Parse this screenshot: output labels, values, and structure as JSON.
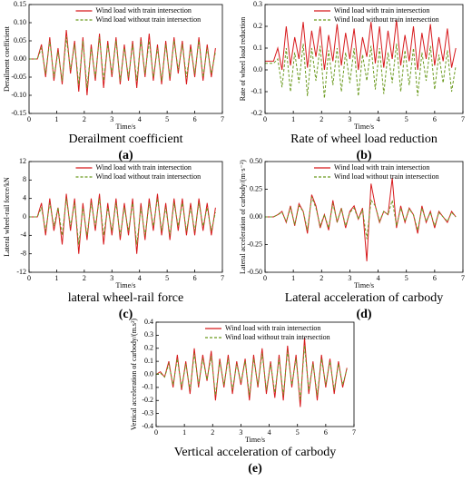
{
  "chart_data": [
    {
      "type": "line",
      "ylabel": "Derailment coefficient",
      "xlabel": "Time/s",
      "caption": "Derailment coefficient",
      "label": "(a)",
      "legend": "upper center",
      "x": [
        0,
        0.15,
        0.3,
        0.45,
        0.6,
        0.75,
        0.9,
        1.05,
        1.2,
        1.35,
        1.5,
        1.65,
        1.8,
        1.95,
        2.1,
        2.25,
        2.4,
        2.55,
        2.7,
        2.85,
        3,
        3.15,
        3.3,
        3.45,
        3.6,
        3.75,
        3.9,
        4.05,
        4.2,
        4.35,
        4.5,
        4.65,
        4.8,
        4.95,
        5.1,
        5.25,
        5.4,
        5.55,
        5.7,
        5.85,
        6,
        6.15,
        6.3,
        6.45,
        6.6,
        6.75
      ],
      "series": [
        {
          "name": "Wind load with train intersection",
          "color": "#d7191c",
          "dash": "solid",
          "values": [
            0,
            0,
            0,
            0.04,
            -0.05,
            0.06,
            -0.06,
            0.03,
            -0.07,
            0.08,
            -0.04,
            0.05,
            -0.09,
            0.06,
            -0.1,
            0.04,
            -0.06,
            0.07,
            -0.08,
            0.05,
            -0.05,
            0.06,
            -0.07,
            0.04,
            -0.06,
            0.05,
            -0.08,
            0.06,
            -0.05,
            0.07,
            -0.06,
            0.04,
            -0.07,
            0.05,
            -0.06,
            0.06,
            -0.04,
            0.05,
            -0.07,
            0.04,
            -0.05,
            0.06,
            -0.06,
            0.04,
            -0.05,
            0.03
          ]
        },
        {
          "name": "Wind load without train intersection",
          "color": "#6b9a1f",
          "dash": "dashed",
          "values": [
            0,
            0,
            0,
            0.03,
            -0.04,
            0.05,
            -0.05,
            0.02,
            -0.06,
            0.06,
            -0.03,
            0.04,
            -0.07,
            0.05,
            -0.08,
            0.03,
            -0.05,
            0.06,
            -0.06,
            0.04,
            -0.04,
            0.05,
            -0.06,
            0.03,
            -0.05,
            0.04,
            -0.06,
            0.05,
            -0.04,
            0.05,
            -0.05,
            0.03,
            -0.06,
            0.04,
            -0.05,
            0.05,
            -0.03,
            0.04,
            -0.05,
            0.03,
            -0.04,
            0.05,
            -0.05,
            0.03,
            -0.04,
            0.02
          ]
        }
      ],
      "xlim": [
        0,
        7
      ],
      "xticks": [
        0,
        1,
        2,
        3,
        4,
        5,
        6,
        7
      ],
      "ylim": [
        -0.15,
        0.15
      ],
      "yticks": [
        0.15,
        {
          "value": 0.1,
          "label": "0.10"
        },
        0.05,
        {
          "value": 0,
          "label": "0.00"
        },
        -0.05,
        {
          "value": -0.1,
          "label": "-0.10"
        },
        -0.15
      ]
    },
    {
      "type": "line",
      "ylabel": "Rate of wheel load reduction",
      "xlabel": "Time/s",
      "caption": "Rate of wheel load reduction",
      "label": "(b)",
      "legend": "upper center",
      "x": [
        0,
        0.15,
        0.3,
        0.45,
        0.6,
        0.75,
        0.9,
        1.05,
        1.2,
        1.35,
        1.5,
        1.65,
        1.8,
        1.95,
        2.1,
        2.25,
        2.4,
        2.55,
        2.7,
        2.85,
        3,
        3.15,
        3.3,
        3.45,
        3.6,
        3.75,
        3.9,
        4.05,
        4.2,
        4.35,
        4.5,
        4.65,
        4.8,
        4.95,
        5.1,
        5.25,
        5.4,
        5.55,
        5.7,
        5.85,
        6,
        6.15,
        6.3,
        6.45,
        6.6,
        6.75
      ],
      "series": [
        {
          "name": "Wind load with train intersection",
          "color": "#d7191c",
          "dash": "solid",
          "values": [
            0.04,
            0.04,
            0.04,
            0.1,
            0,
            0.2,
            0.02,
            0.15,
            0.05,
            0.22,
            0.01,
            0.18,
            0.06,
            0.2,
            0,
            0.16,
            0.04,
            0.21,
            0.02,
            0.17,
            0.05,
            0.19,
            0,
            0.15,
            0.06,
            0.22,
            0.03,
            0.2,
            0.01,
            0.18,
            0.05,
            0.23,
            0.02,
            0.16,
            0.04,
            0.2,
            0,
            0.17,
            0.05,
            0.21,
            0.02,
            0.15,
            0.04,
            0.19,
            0.01,
            0.1
          ]
        },
        {
          "name": "Wind load without train intersection",
          "color": "#6b9a1f",
          "dash": "dashed",
          "values": [
            0.03,
            0.03,
            0.03,
            0.05,
            -0.08,
            0.1,
            -0.1,
            0.08,
            -0.06,
            0.12,
            -0.12,
            0.1,
            -0.05,
            0.11,
            -0.13,
            0.09,
            -0.07,
            0.1,
            -0.1,
            0.08,
            -0.06,
            0.1,
            -0.12,
            0.07,
            -0.05,
            0.11,
            -0.09,
            0.1,
            -0.11,
            0.08,
            -0.06,
            0.12,
            -0.1,
            0.09,
            -0.07,
            0.1,
            -0.12,
            0.08,
            -0.05,
            0.11,
            -0.09,
            0.07,
            -0.06,
            0.09,
            -0.1,
            0.02
          ]
        }
      ],
      "xlim": [
        0,
        7
      ],
      "xticks": [
        0,
        1,
        2,
        3,
        4,
        5,
        6,
        7
      ],
      "ylim": [
        -0.2,
        0.3
      ],
      "yticks": [
        0.3,
        0.2,
        0.1,
        {
          "value": 0,
          "label": "0.0"
        },
        -0.1,
        -0.2
      ]
    },
    {
      "type": "line",
      "ylabel": "Lateral wheel-rail force/kN",
      "xlabel": "Time/s",
      "caption": "lateral wheel-rail force",
      "label": "(c)",
      "legend": "upper center",
      "x": [
        0,
        0.15,
        0.3,
        0.45,
        0.6,
        0.75,
        0.9,
        1.05,
        1.2,
        1.35,
        1.5,
        1.65,
        1.8,
        1.95,
        2.1,
        2.25,
        2.4,
        2.55,
        2.7,
        2.85,
        3,
        3.15,
        3.3,
        3.45,
        3.6,
        3.75,
        3.9,
        4.05,
        4.2,
        4.35,
        4.5,
        4.65,
        4.8,
        4.95,
        5.1,
        5.25,
        5.4,
        5.55,
        5.7,
        5.85,
        6,
        6.15,
        6.3,
        6.45,
        6.6,
        6.75
      ],
      "series": [
        {
          "name": "Wind load with train intersection",
          "color": "#d7191c",
          "dash": "solid",
          "values": [
            0,
            0,
            0,
            3,
            -4,
            4,
            -3,
            2,
            -6,
            5,
            -3,
            4,
            -8,
            3,
            -5,
            4,
            -3,
            5,
            -6,
            3,
            -4,
            4,
            -5,
            3,
            -4,
            4,
            -8,
            3,
            -5,
            4,
            -3,
            5,
            -4,
            3,
            -5,
            4,
            -3,
            4,
            -4,
            3,
            -4,
            4,
            -3,
            3,
            -4,
            2
          ]
        },
        {
          "name": "Wind load without train intersection",
          "color": "#6b9a1f",
          "dash": "dashed",
          "values": [
            0,
            0,
            0,
            2,
            -3,
            3,
            -2,
            2,
            -4,
            4,
            -2,
            3,
            -6,
            2,
            -4,
            3,
            -2,
            4,
            -4,
            2,
            -3,
            3,
            -4,
            2,
            -3,
            3,
            -6,
            2,
            -4,
            3,
            -2,
            4,
            -3,
            2,
            -4,
            3,
            -2,
            3,
            -3,
            2,
            -3,
            3,
            -2,
            2,
            -3,
            1
          ]
        }
      ],
      "xlim": [
        0,
        7
      ],
      "xticks": [
        0,
        1,
        2,
        3,
        4,
        5,
        6,
        7
      ],
      "ylim": [
        -12,
        12
      ],
      "yticks": [
        12,
        8,
        4,
        0,
        -4,
        -8,
        -12
      ]
    },
    {
      "type": "line",
      "ylabel": "Lateral acceleration of carbody/(m·s⁻²)",
      "xlabel": "Time/s",
      "caption": "Lateral acceleration of carbody",
      "label": "(d)",
      "legend": "upper center",
      "x": [
        0,
        0.15,
        0.3,
        0.45,
        0.6,
        0.75,
        0.9,
        1.05,
        1.2,
        1.35,
        1.5,
        1.65,
        1.8,
        1.95,
        2.1,
        2.25,
        2.4,
        2.55,
        2.7,
        2.85,
        3,
        3.15,
        3.3,
        3.45,
        3.6,
        3.75,
        3.9,
        4.05,
        4.2,
        4.35,
        4.5,
        4.65,
        4.8,
        4.95,
        5.1,
        5.25,
        5.4,
        5.55,
        5.7,
        5.85,
        6,
        6.15,
        6.3,
        6.45,
        6.6,
        6.75
      ],
      "series": [
        {
          "name": "Wind load with train intersection",
          "color": "#d7191c",
          "dash": "solid",
          "values": [
            0,
            0,
            0,
            0.02,
            0.05,
            -0.05,
            0.1,
            -0.08,
            0.12,
            0.05,
            -0.15,
            0.2,
            0.1,
            -0.1,
            0.02,
            -0.12,
            0.15,
            -0.05,
            0.08,
            -0.1,
            0.05,
            0.1,
            -0.02,
            0.08,
            -0.4,
            0.3,
            0.1,
            -0.05,
            0.05,
            0.02,
            0.35,
            -0.1,
            0.1,
            -0.05,
            0.08,
            0.02,
            -0.15,
            0.1,
            -0.05,
            0.05,
            -0.1,
            0.05,
            0,
            -0.05,
            0.05,
            0
          ]
        },
        {
          "name": "Wind load without train intersection",
          "color": "#6b9a1f",
          "dash": "dashed",
          "values": [
            0,
            0,
            0,
            0.02,
            0.04,
            -0.04,
            0.08,
            -0.07,
            0.1,
            0.05,
            -0.12,
            0.18,
            0.08,
            -0.08,
            0.02,
            -0.1,
            0.12,
            -0.04,
            0.07,
            -0.08,
            0.04,
            0.08,
            -0.02,
            0.06,
            -0.2,
            0.15,
            0.1,
            -0.04,
            0.05,
            0.02,
            0.15,
            -0.08,
            0.08,
            -0.04,
            0.07,
            0.02,
            -0.12,
            0.08,
            -0.04,
            0.04,
            -0.08,
            0.04,
            0,
            -0.04,
            0.04,
            0
          ]
        }
      ],
      "xlim": [
        0,
        7
      ],
      "xticks": [
        0,
        1,
        2,
        3,
        4,
        5,
        6,
        7
      ],
      "ylim": [
        -0.5,
        0.5
      ],
      "yticks": [
        {
          "value": 0.5,
          "label": "0.50"
        },
        0.25,
        {
          "value": 0,
          "label": "0.00"
        },
        -0.25,
        {
          "value": -0.5,
          "label": "-0.50"
        }
      ]
    },
    {
      "type": "line",
      "ylabel": "Vertical acceleration of carbody/(m.s²)",
      "xlabel": "Time/s",
      "caption": "Vertical acceleration of carbody",
      "label": "(e)",
      "legend": "upper center",
      "x": [
        0,
        0.15,
        0.3,
        0.45,
        0.6,
        0.75,
        0.9,
        1.05,
        1.2,
        1.35,
        1.5,
        1.65,
        1.8,
        1.95,
        2.1,
        2.25,
        2.4,
        2.55,
        2.7,
        2.85,
        3,
        3.15,
        3.3,
        3.45,
        3.6,
        3.75,
        3.9,
        4.05,
        4.2,
        4.35,
        4.5,
        4.65,
        4.8,
        4.95,
        5.1,
        5.25,
        5.4,
        5.55,
        5.7,
        5.85,
        6,
        6.15,
        6.3,
        6.45,
        6.6,
        6.75
      ],
      "series": [
        {
          "name": "Wind load with train intersection",
          "color": "#d7191c",
          "dash": "solid",
          "values": [
            0,
            0.02,
            -0.02,
            0.1,
            -0.1,
            0.15,
            -0.12,
            0.1,
            -0.15,
            0.2,
            -0.1,
            0.15,
            -0.05,
            0.18,
            -0.2,
            0.12,
            -0.1,
            0.15,
            -0.15,
            0.1,
            -0.08,
            0.12,
            -0.2,
            0.15,
            -0.1,
            0.2,
            -0.15,
            0.1,
            -0.18,
            0.15,
            -0.2,
            0.22,
            -0.1,
            0.15,
            -0.25,
            0.28,
            -0.15,
            0.1,
            -0.2,
            0.15,
            -0.1,
            0.12,
            -0.15,
            0.1,
            -0.1,
            0.05
          ]
        },
        {
          "name": "Wind load without train intersection",
          "color": "#6b9a1f",
          "dash": "dashed",
          "values": [
            0,
            0.01,
            -0.02,
            0.08,
            -0.08,
            0.12,
            -0.1,
            0.08,
            -0.12,
            0.16,
            -0.08,
            0.12,
            -0.04,
            0.14,
            -0.16,
            0.1,
            -0.08,
            0.12,
            -0.12,
            0.08,
            -0.06,
            0.1,
            -0.16,
            0.12,
            -0.08,
            0.16,
            -0.12,
            0.08,
            -0.14,
            0.12,
            -0.16,
            0.18,
            -0.08,
            0.12,
            -0.2,
            0.22,
            -0.12,
            0.08,
            -0.16,
            0.12,
            -0.08,
            0.1,
            -0.12,
            0.08,
            -0.08,
            0.04
          ]
        }
      ],
      "xlim": [
        0,
        7
      ],
      "xticks": [
        0,
        1,
        2,
        3,
        4,
        5,
        6,
        7
      ],
      "ylim": [
        -0.4,
        0.4
      ],
      "yticks": [
        0.4,
        0.3,
        0.2,
        0.1,
        {
          "value": 0,
          "label": "0.0"
        },
        -0.1,
        -0.2,
        -0.3,
        -0.4
      ]
    }
  ]
}
